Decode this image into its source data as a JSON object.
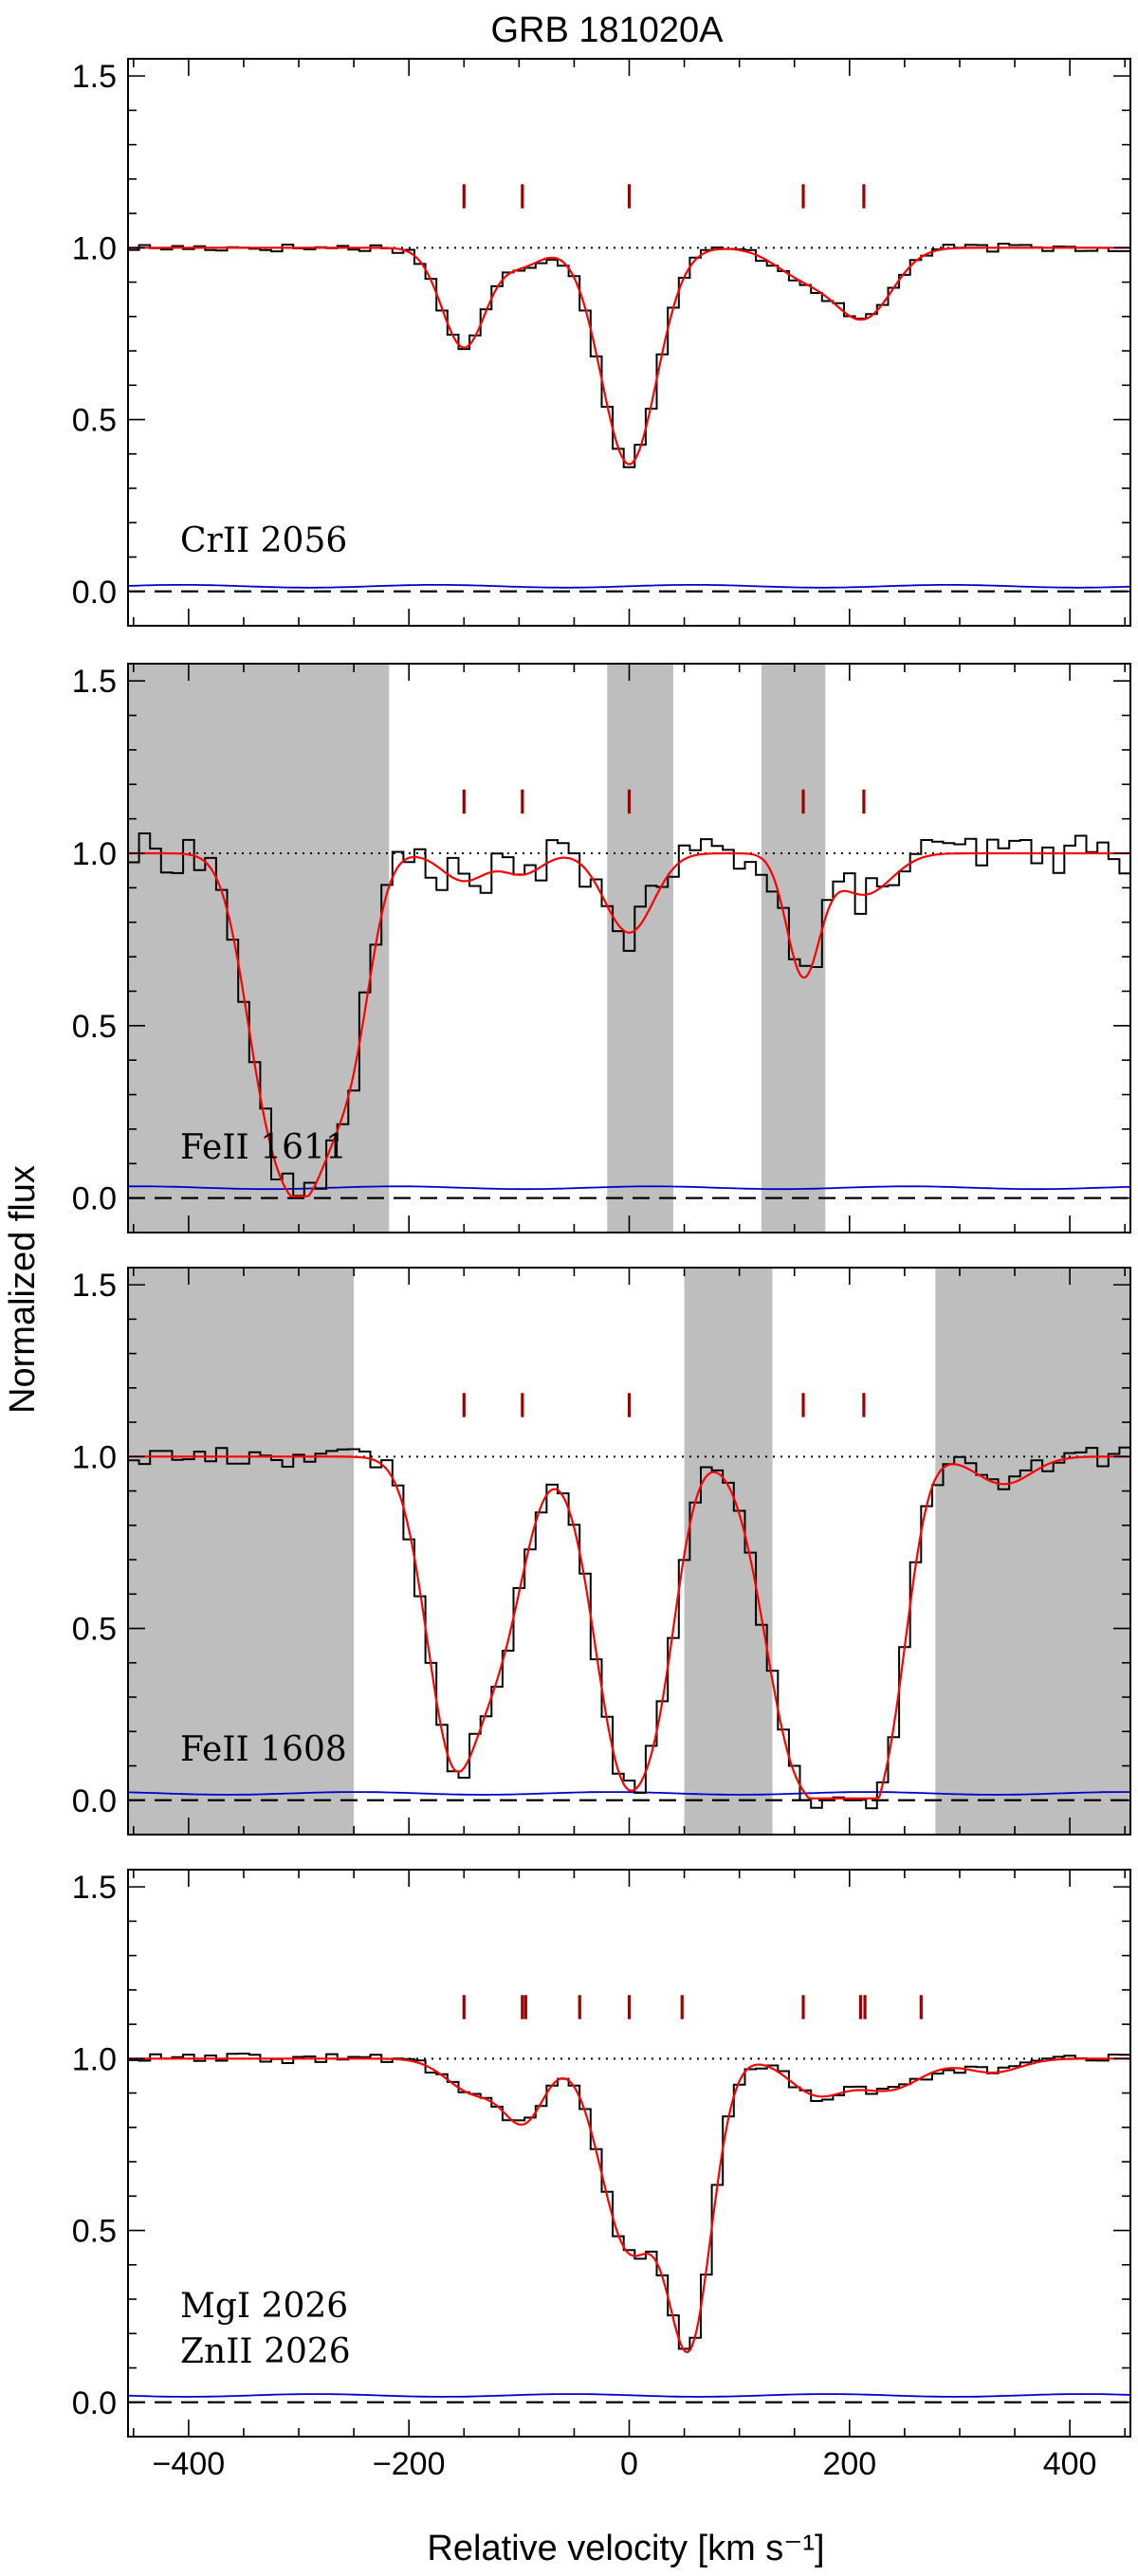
{
  "chart_data": {
    "type": "line",
    "title": "GRB 181020A",
    "xlabel": "Relative velocity  [km s⁻¹]",
    "ylabel": "Normalized flux",
    "xlim": [
      -455,
      455
    ],
    "ylim": [
      -0.1,
      1.55
    ],
    "xticks": [
      -400,
      -200,
      0,
      200,
      400
    ],
    "xtick_labels": [
      "−400",
      "−200",
      "0",
      "200",
      "400"
    ],
    "yticks": [
      0.0,
      0.5,
      1.0,
      1.5
    ],
    "ytick_labels": [
      "0.0",
      "0.5",
      "1.0",
      "1.5"
    ],
    "continuum": 1.0,
    "colors": {
      "spectrum": "#000000",
      "model": "#ff0000",
      "error": "#0000cc",
      "components": "#a00000",
      "masked": "#bebebe"
    },
    "panels": [
      {
        "labels": [
          "CrII 2056"
        ],
        "components": [
          -150,
          -97,
          0,
          158,
          213
        ],
        "masked": [],
        "absorption": [
          [
            -150,
            0.29,
            20
          ],
          [
            -97,
            0.05,
            18
          ],
          [
            0,
            0.63,
            25
          ],
          [
            158,
            0.08,
            26
          ],
          [
            213,
            0.2,
            26
          ]
        ],
        "noise": 0.012,
        "error_level": 0.015
      },
      {
        "labels": [
          "FeII 1611"
        ],
        "components": [
          -150,
          -97,
          0,
          158,
          213
        ],
        "masked": [
          [
            -455,
            -218
          ],
          [
            -20,
            40
          ],
          [
            120,
            178
          ]
        ],
        "absorption": [
          [
            -330,
            0.55,
            22
          ],
          [
            -290,
            0.85,
            25
          ],
          [
            -250,
            0.4,
            18
          ],
          [
            -150,
            0.08,
            20
          ],
          [
            -97,
            0.06,
            18
          ],
          [
            0,
            0.23,
            22
          ],
          [
            158,
            0.35,
            15
          ],
          [
            213,
            0.12,
            25
          ]
        ],
        "noise": 0.06,
        "error_level": 0.03
      },
      {
        "labels": [
          "FeII 1608"
        ],
        "components": [
          -150,
          -97,
          0,
          158,
          213
        ],
        "masked": [
          [
            -455,
            -250
          ],
          [
            50,
            130
          ],
          [
            278,
            455
          ]
        ],
        "absorption": [
          [
            -160,
            0.85,
            24
          ],
          [
            -115,
            0.45,
            22
          ],
          [
            -5,
            0.9,
            26
          ],
          [
            30,
            0.35,
            18
          ],
          [
            150,
            0.82,
            28
          ],
          [
            205,
            0.95,
            26
          ],
          [
            240,
            0.4,
            18
          ],
          [
            340,
            0.08,
            25
          ]
        ],
        "noise": 0.03,
        "error_level": 0.02
      },
      {
        "labels": [
          "MgI 2026",
          "ZnII 2026"
        ],
        "components": [
          -150,
          -97,
          -94,
          -45,
          0,
          48,
          158,
          210,
          214,
          265
        ],
        "masked": [],
        "absorption": [
          [
            -140,
            0.1,
            25
          ],
          [
            -95,
            0.17,
            18
          ],
          [
            0,
            0.55,
            25
          ],
          [
            55,
            0.8,
            20
          ],
          [
            170,
            0.1,
            25
          ],
          [
            235,
            0.09,
            30
          ],
          [
            330,
            0.04,
            25
          ]
        ],
        "noise": 0.015,
        "error_level": 0.02
      }
    ]
  }
}
